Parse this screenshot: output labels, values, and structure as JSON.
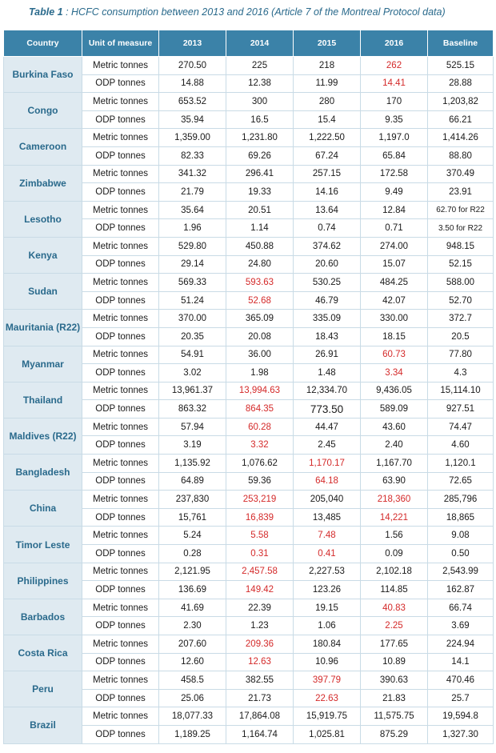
{
  "caption": {
    "label": "Table 1",
    "text": " : HCFC consumption between 2013 and 2016 (Article 7 of the Montreal Protocol data)"
  },
  "headers": [
    "Country",
    "Unit of measure",
    "2013",
    "2014",
    "2015",
    "2016",
    "Baseline"
  ],
  "highlight_color": "#d42a2a",
  "header_color": "#3b82a8",
  "rows": [
    {
      "country": "Burkina Faso",
      "metric": [
        "270.50",
        "225",
        "218",
        "262",
        "525.15"
      ],
      "odp": [
        "14.88",
        "12.38",
        "11.99",
        "14.41",
        "28.88"
      ],
      "metric_red": [
        3
      ],
      "odp_red": [
        3
      ]
    },
    {
      "country": "Congo",
      "metric": [
        "653.52",
        "300",
        "280",
        "170",
        "1,203,82"
      ],
      "odp": [
        "35.94",
        "16.5",
        "15.4",
        "9.35",
        "66.21"
      ],
      "metric_red": [],
      "odp_red": []
    },
    {
      "country": "Cameroon",
      "metric": [
        "1,359.00",
        "1,231.80",
        "1,222.50",
        "1,197.0",
        "1,414.26"
      ],
      "odp": [
        "82.33",
        "69.26",
        "67.24",
        "65.84",
        "88.80"
      ],
      "metric_red": [],
      "odp_red": []
    },
    {
      "country": "Zimbabwe",
      "metric": [
        "341.32",
        "296.41",
        "257.15",
        "172.58",
        "370.49"
      ],
      "odp": [
        "21.79",
        "19.33",
        "14.16",
        "9.49",
        "23.91"
      ],
      "metric_red": [],
      "odp_red": []
    },
    {
      "country": "Lesotho",
      "metric": [
        "35.64",
        "20.51",
        "13.64",
        "12.84",
        "62.70 for R22"
      ],
      "odp": [
        "1.96",
        "1.14",
        "0.74",
        "0.71",
        "3.50 for R22"
      ],
      "metric_red": [],
      "odp_red": []
    },
    {
      "country": "Kenya",
      "metric": [
        "529.80",
        "450.88",
        "374.62",
        "274.00",
        "948.15"
      ],
      "odp": [
        "29.14",
        "24.80",
        "20.60",
        "15.07",
        "52.15"
      ],
      "metric_red": [],
      "odp_red": []
    },
    {
      "country": "Sudan",
      "metric": [
        "569.33",
        "593.63",
        "530.25",
        "484.25",
        "588.00"
      ],
      "odp": [
        "51.24",
        "52.68",
        "46.79",
        "42.07",
        "52.70"
      ],
      "metric_red": [
        1
      ],
      "odp_red": [
        1
      ]
    },
    {
      "country": "Mauritania (R22)",
      "metric": [
        "370.00",
        "365.09",
        "335.09",
        "330.00",
        "372.7"
      ],
      "odp": [
        "20.35",
        "20.08",
        "18.43",
        "18.15",
        "20.5"
      ],
      "metric_red": [],
      "odp_red": []
    },
    {
      "country": "Myanmar",
      "metric": [
        "54.91",
        "36.00",
        "26.91",
        "60.73",
        "77.80"
      ],
      "odp": [
        "3.02",
        "1.98",
        "1.48",
        "3.34",
        "4.3"
      ],
      "metric_red": [
        3
      ],
      "odp_red": [
        3
      ]
    },
    {
      "country": "Thailand",
      "metric": [
        "13,961.37",
        "13,994.63",
        "12,334.70",
        "9,436.05",
        "15,114.10"
      ],
      "odp": [
        "863.32",
        "864.35",
        "773.50",
        "589.09",
        "927.51"
      ],
      "metric_red": [
        1
      ],
      "odp_red": [
        1
      ]
    },
    {
      "country": "Maldives (R22)",
      "metric": [
        "57.94",
        "60.28",
        "44.47",
        "43.60",
        "74.47"
      ],
      "odp": [
        "3.19",
        "3.32",
        "2.45",
        "2.40",
        "4.60"
      ],
      "metric_red": [
        1
      ],
      "odp_red": [
        1
      ]
    },
    {
      "country": "Bangladesh",
      "metric": [
        "1,135.92",
        "1,076.62",
        "1,170.17",
        "1,167.70",
        "1,120.1"
      ],
      "odp": [
        "64.89",
        "59.36",
        "64.18",
        "63.90",
        "72.65"
      ],
      "metric_red": [
        2
      ],
      "odp_red": [
        2
      ]
    },
    {
      "country": "China",
      "metric": [
        "237,830",
        "253,219",
        "205,040",
        "218,360",
        "285,796"
      ],
      "odp": [
        "15,761",
        "16,839",
        "13,485",
        "14,221",
        "18,865"
      ],
      "metric_red": [
        1,
        3
      ],
      "odp_red": [
        1,
        3
      ]
    },
    {
      "country": "Timor Leste",
      "metric": [
        "5.24",
        "5.58",
        "7.48",
        "1.56",
        "9.08"
      ],
      "odp": [
        "0.28",
        "0.31",
        "0.41",
        "0.09",
        "0.50"
      ],
      "metric_red": [
        1,
        2
      ],
      "odp_red": [
        1,
        2
      ]
    },
    {
      "country": "Philippines",
      "metric": [
        "2,121.95",
        "2,457.58",
        "2,227.53",
        "2,102.18",
        "2,543.99"
      ],
      "odp": [
        "136.69",
        "149.42",
        "123.26",
        "114.85",
        "162.87"
      ],
      "metric_red": [
        1
      ],
      "odp_red": [
        1
      ]
    },
    {
      "country": "Barbados",
      "metric": [
        "41.69",
        "22.39",
        "19.15",
        "40.83",
        "66.74"
      ],
      "odp": [
        "2.30",
        "1.23",
        "1.06",
        "2.25",
        "3.69"
      ],
      "metric_red": [
        3
      ],
      "odp_red": [
        3
      ]
    },
    {
      "country": "Costa Rica",
      "metric": [
        "207.60",
        "209.36",
        "180.84",
        "177.65",
        "224.94"
      ],
      "odp": [
        "12.60",
        "12.63",
        "10.96",
        "10.89",
        "14.1"
      ],
      "metric_red": [
        1
      ],
      "odp_red": [
        1
      ]
    },
    {
      "country": "Peru",
      "metric": [
        "458.5",
        "382.55",
        "397.79",
        "390.63",
        "470.46"
      ],
      "odp": [
        "25.06",
        "21.73",
        "22.63",
        "21.83",
        "25.7"
      ],
      "metric_red": [
        2
      ],
      "odp_red": [
        2
      ]
    },
    {
      "country": "Brazil",
      "metric": [
        "18,077.33",
        "17,864.08",
        "15,919.75",
        "11,575.75",
        "19,594.8"
      ],
      "odp": [
        "1,189.25",
        "1,164.74",
        "1,025.81",
        "875.29",
        "1,327.30"
      ],
      "metric_red": [],
      "odp_red": []
    }
  ],
  "units": {
    "metric": "Metric tonnes",
    "odp": "ODP tonnes"
  }
}
